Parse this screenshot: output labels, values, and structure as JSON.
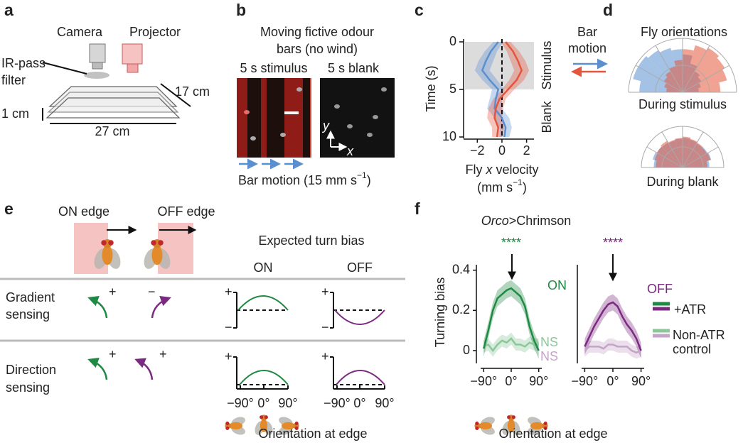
{
  "panel_labels": [
    "a",
    "b",
    "c",
    "d",
    "e",
    "f"
  ],
  "panel_a": {
    "camera": "Camera",
    "projector": "Projector",
    "filter": [
      "IR-pass",
      "filter"
    ],
    "depth": "17 cm",
    "height": "1 cm",
    "width": "27 cm"
  },
  "panel_b": {
    "title": [
      "Moving fictive odour",
      "bars (no wind)"
    ],
    "stimulus": "5 s stimulus",
    "blank": "5 s blank",
    "image_y": "y",
    "image_x": "x",
    "caption": [
      "Bar motion (15 mm s",
      "−1",
      ")"
    ]
  },
  "panel_e": {
    "on_edge": "ON edge",
    "off_edge": "OFF edge",
    "expected": "Expected turn bias",
    "col_on": "ON",
    "col_off": "OFF",
    "gradient": [
      "Gradient",
      "sensing"
    ],
    "direction": [
      "Direction",
      "sensing"
    ],
    "arrow_signs": [
      "+",
      "−",
      "+",
      "+"
    ],
    "axis_signs": [
      "+",
      "−",
      "+",
      "−",
      "+",
      "+"
    ],
    "ticks": [
      "−90°",
      "0°",
      "90°",
      "−90°",
      "0°",
      "90°"
    ],
    "xlabel": "Orientation at edge"
  },
  "panel_f": {
    "title": [
      "Orco",
      ">Chrimson"
    ],
    "xlabel": "Orientation at edge"
  },
  "chart_data": [
    {
      "type": "line",
      "orientation": "horizontal",
      "y": [
        0,
        1,
        2,
        3,
        4,
        5,
        6,
        7,
        8,
        9,
        10
      ],
      "ylim": [
        0,
        10
      ],
      "y_inverted": true,
      "yticks": [
        0,
        5,
        10
      ],
      "xlim": [
        -3,
        2.6
      ],
      "xticks": [
        {
          "value": -2,
          "label": "−2"
        },
        0,
        2
      ],
      "ylabel": "Time (s)",
      "xlabel": [
        "Fly ",
        "x",
        " velocity"
      ],
      "xlabel_unit": [
        "(mm s",
        "−1",
        ")"
      ],
      "shaded": [
        0,
        5
      ],
      "zero_line": true,
      "annotations": [
        "Stimulus",
        "Blank"
      ],
      "legend_title": [
        "Bar",
        "motion"
      ],
      "series": [
        {
          "color": "#5a8fd0",
          "values": [
            -0.3,
            -0.9,
            -1.3,
            -1.6,
            -1.0,
            -0.3,
            -0.5,
            -0.6,
            0,
            0.3,
            0.2
          ],
          "errors": [
            0.4,
            0.5,
            0.6,
            0.6,
            0.6,
            0.5,
            0.5,
            0.6,
            0.6,
            0.5,
            0.4
          ]
        },
        {
          "color": "#e4553b",
          "values": [
            0.3,
            0.9,
            1.3,
            1.6,
            1.2,
            0.5,
            -0.2,
            -0.5,
            -0.6,
            -0.3,
            -0.4
          ],
          "errors": [
            0.4,
            0.5,
            0.6,
            0.6,
            0.6,
            0.5,
            0.5,
            0.6,
            0.6,
            0.5,
            0.4
          ]
        }
      ]
    },
    {
      "type": "polar",
      "title": "Fly orientations",
      "caption": "During stimulus",
      "series": [
        {
          "color": "#5a8fd0",
          "values": [
            0.8,
            0.95,
            0.95,
            0.9,
            0.85,
            0.8,
            0.7,
            0.55,
            0.45,
            0.4,
            0.35,
            0.3
          ]
        },
        {
          "color": "#e4553b",
          "values": [
            0.3,
            0.35,
            0.4,
            0.45,
            0.5,
            0.6,
            0.8,
            0.9,
            0.95,
            0.9,
            0.85,
            0.7
          ]
        }
      ]
    },
    {
      "type": "polar",
      "caption": "During blank",
      "series": [
        {
          "color": "#5a8fd0",
          "values": [
            0.7,
            0.75,
            0.72,
            0.7,
            0.68,
            0.7,
            0.72,
            0.7,
            0.68,
            0.7,
            0.72,
            0.65
          ]
        },
        {
          "color": "#e4553b",
          "values": [
            0.65,
            0.7,
            0.72,
            0.75,
            0.7,
            0.72,
            0.75,
            0.72,
            0.7,
            0.68,
            0.7,
            0.6
          ]
        }
      ]
    },
    {
      "type": "line",
      "label": "ON",
      "stars": "****",
      "ns": "NS",
      "x": [
        -90,
        -75,
        -60,
        -45,
        -30,
        -15,
        0,
        15,
        30,
        45,
        60,
        75,
        90
      ],
      "xlim": [
        -100,
        100
      ],
      "xticks": [
        {
          "value": -90,
          "label": "−90°"
        },
        {
          "value": 0,
          "label": "0°"
        },
        {
          "value": 90,
          "label": "90°"
        }
      ],
      "ylim": [
        -0.06,
        0.42
      ],
      "yticks": [
        0,
        0.2,
        0.4
      ],
      "ylabel": "Turning bias",
      "series": [
        {
          "name": "+ATR",
          "color": "#1f8a43",
          "values": [
            0.01,
            0.1,
            0.2,
            0.26,
            0.28,
            0.3,
            0.31,
            0.29,
            0.27,
            0.22,
            0.12,
            0.05,
            0.0
          ],
          "errors": [
            0.04,
            0.04,
            0.04,
            0.04,
            0.04,
            0.04,
            0.04,
            0.04,
            0.04,
            0.04,
            0.04,
            0.04,
            0.04
          ]
        },
        {
          "name": "Non-ATR control",
          "color": "#8cc79a",
          "values": [
            0.02,
            0.03,
            0.0,
            0.03,
            0.05,
            0.04,
            0.06,
            0.03,
            0.03,
            0.02,
            0.04,
            0.03,
            0.03
          ],
          "errors": [
            0.03,
            0.03,
            0.03,
            0.03,
            0.03,
            0.03,
            0.03,
            0.03,
            0.03,
            0.03,
            0.03,
            0.03,
            0.03
          ]
        }
      ]
    },
    {
      "type": "line",
      "label": "OFF",
      "stars": "****",
      "ns": "NS",
      "x": [
        -90,
        -75,
        -60,
        -45,
        -30,
        -15,
        0,
        15,
        30,
        45,
        60,
        75,
        90
      ],
      "xlim": [
        -100,
        100
      ],
      "xticks": [
        {
          "value": -90,
          "label": "−90°"
        },
        {
          "value": 0,
          "label": "0°"
        },
        {
          "value": 90,
          "label": "90°"
        }
      ],
      "ylim": [
        -0.06,
        0.42
      ],
      "series": [
        {
          "color": "#7a2a80",
          "values": [
            0.02,
            0.07,
            0.12,
            0.16,
            0.2,
            0.23,
            0.24,
            0.22,
            0.17,
            0.13,
            0.1,
            0.06,
            0.0
          ],
          "errors": [
            0.04,
            0.04,
            0.04,
            0.04,
            0.04,
            0.04,
            0.04,
            0.04,
            0.04,
            0.04,
            0.04,
            0.04,
            0.04
          ]
        },
        {
          "color": "#c6a3c9",
          "values": [
            0.0,
            0.02,
            0.02,
            0.02,
            0.01,
            0.03,
            0.03,
            0.02,
            0.02,
            0.02,
            0.0,
            -0.01,
            0.0
          ],
          "errors": [
            0.03,
            0.03,
            0.03,
            0.03,
            0.03,
            0.03,
            0.03,
            0.03,
            0.03,
            0.03,
            0.03,
            0.03,
            0.03
          ]
        }
      ]
    }
  ]
}
